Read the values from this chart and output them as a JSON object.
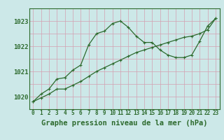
{
  "title": "Graphe pression niveau de la mer (hPa)",
  "line1_x": [
    0,
    1,
    2,
    3,
    4,
    5,
    6,
    7,
    8,
    9,
    10,
    11,
    12,
    13,
    14,
    15,
    16,
    17,
    18,
    19,
    20,
    21,
    22,
    23
  ],
  "line1_y": [
    1019.8,
    1020.1,
    1020.3,
    1020.7,
    1020.75,
    1021.05,
    1021.25,
    1022.05,
    1022.5,
    1022.6,
    1022.9,
    1023.0,
    1022.75,
    1022.4,
    1022.15,
    1022.15,
    1021.85,
    1021.65,
    1021.55,
    1021.55,
    1021.65,
    1022.2,
    1022.8,
    1023.1
  ],
  "line2_x": [
    0,
    1,
    2,
    3,
    4,
    5,
    6,
    7,
    8,
    9,
    10,
    11,
    12,
    13,
    14,
    15,
    16,
    17,
    18,
    19,
    20,
    21,
    22,
    23
  ],
  "line2_y": [
    1019.8,
    1019.95,
    1020.1,
    1020.3,
    1020.3,
    1020.45,
    1020.6,
    1020.8,
    1021.0,
    1021.15,
    1021.3,
    1021.45,
    1021.6,
    1021.75,
    1021.85,
    1021.95,
    1022.05,
    1022.15,
    1022.25,
    1022.35,
    1022.4,
    1022.5,
    1022.65,
    1023.1
  ],
  "line_color": "#2d6a2d",
  "bg_color": "#cce8e8",
  "grid_color_major": "#d4a0b0",
  "grid_color_minor": "#d4a0b0",
  "xlim": [
    -0.5,
    23.5
  ],
  "ylim": [
    1019.5,
    1023.5
  ],
  "yticks": [
    1020,
    1021,
    1022,
    1023
  ],
  "xticks": [
    0,
    1,
    2,
    3,
    4,
    5,
    6,
    7,
    8,
    9,
    10,
    11,
    12,
    13,
    14,
    15,
    16,
    17,
    18,
    19,
    20,
    21,
    22,
    23
  ],
  "title_fontsize": 7.5,
  "tick_fontsize": 5.5,
  "ylabel_fontsize": 6.5
}
